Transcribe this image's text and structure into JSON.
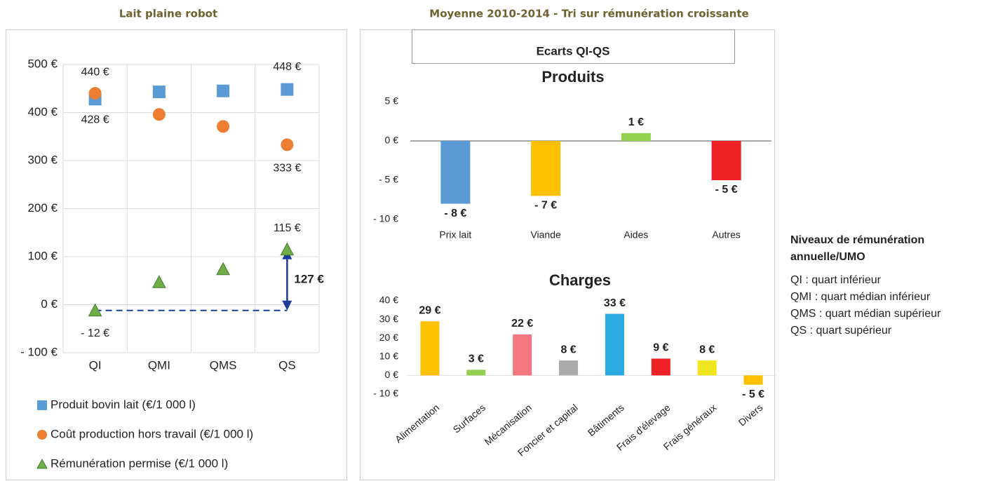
{
  "figure": {
    "subtitle": "Moyenne 2010-2014 - Tri sur rémunération croissante",
    "box_title": "Ecarts QI-QS"
  },
  "notes": {
    "title": "Niveaux de rémunération annuelle/UMO",
    "lines": [
      "QI : quart inférieur",
      "QMI : quart médian inférieur",
      "QMS : quart médian supérieur",
      "QS : quart supérieur"
    ]
  },
  "chart_data": [
    {
      "type": "dot",
      "title": "Lait plaine robot",
      "categories": [
        "QI",
        "QMI",
        "QMS",
        "QS"
      ],
      "series": [
        {
          "name": "Produit bovin lait (€/1 000 l)",
          "color": "#5b9bd5",
          "label_color": "#2e75b6",
          "marker": "square",
          "values": [
            428,
            443,
            445,
            448
          ],
          "value_labels": [
            "428 €",
            null,
            null,
            "448 €"
          ]
        },
        {
          "name": "Coût production hors travail (€/1 000 l)",
          "color": "#ed7d31",
          "label_color": "#c55a11",
          "marker": "circle",
          "values": [
            440,
            396,
            371,
            333
          ],
          "value_labels": [
            "440 €",
            null,
            null,
            "333 €"
          ]
        },
        {
          "name": "Rémunération permise (€/1 000 l)",
          "color": "#70ad47",
          "label_color": "#548235",
          "marker": "triangle",
          "values": [
            -12,
            47,
            74,
            115
          ],
          "value_labels": [
            "- 12 €",
            null,
            null,
            "115 €"
          ]
        }
      ],
      "annotation": {
        "label": "127 €",
        "color": "#e8202a",
        "arrow_color": "#1f3c99"
      },
      "ylim": [
        -100,
        500
      ],
      "yticks": [
        {
          "value": -100,
          "label": "- 100 €"
        },
        {
          "value": 0,
          "label": "0 €"
        },
        {
          "value": 100,
          "label": "100 €"
        },
        {
          "value": 200,
          "label": "200 €"
        },
        {
          "value": 300,
          "label": "300 €"
        },
        {
          "value": 400,
          "label": "400 €"
        },
        {
          "value": 500,
          "label": "500 €"
        }
      ],
      "grid": true
    },
    {
      "type": "bar",
      "title": "Produits",
      "categories": [
        "Prix lait",
        "Viande",
        "Aides",
        "Autres"
      ],
      "values": [
        -8,
        -7,
        1,
        -5
      ],
      "value_labels": [
        "- 8 €",
        "- 7 €",
        "1 €",
        "- 5 €"
      ],
      "colors": [
        "#5b9bd5",
        "#ffc000",
        "#92d050",
        "#ee2024"
      ],
      "label_color": "#e8202a",
      "ylim": [
        -10,
        5
      ],
      "yticks": [
        {
          "value": -10,
          "label": "- 10 €"
        },
        {
          "value": -5,
          "label": "- 5 €"
        },
        {
          "value": 0,
          "label": "0 €"
        },
        {
          "value": 5,
          "label": "5 €"
        }
      ],
      "grid": false
    },
    {
      "type": "bar",
      "title": "Charges",
      "categories": [
        "Alimentation",
        "Surfaces",
        "Mécanisation",
        "Foncier et capital",
        "Bâtiments",
        "Frais d'élevage",
        "Frais généraux",
        "Divers"
      ],
      "values": [
        29,
        3,
        22,
        8,
        33,
        9,
        8,
        -5
      ],
      "value_labels": [
        "29 €",
        "3 €",
        "22 €",
        "8 €",
        "33 €",
        "9 €",
        "8 €",
        "- 5 €"
      ],
      "colors": [
        "#ffc000",
        "#92d050",
        "#f4777f",
        "#aaaaaa",
        "#29abe2",
        "#ee2024",
        "#f0e61e",
        "#ffc000"
      ],
      "label_color": "#e8202a",
      "ylim": [
        -10,
        40
      ],
      "yticks": [
        {
          "value": -10,
          "label": "- 10 €"
        },
        {
          "value": 0,
          "label": "0 €"
        },
        {
          "value": 10,
          "label": "10 €"
        },
        {
          "value": 20,
          "label": "20 €"
        },
        {
          "value": 30,
          "label": "30 €"
        },
        {
          "value": 40,
          "label": "40 €"
        }
      ],
      "grid": false
    }
  ]
}
